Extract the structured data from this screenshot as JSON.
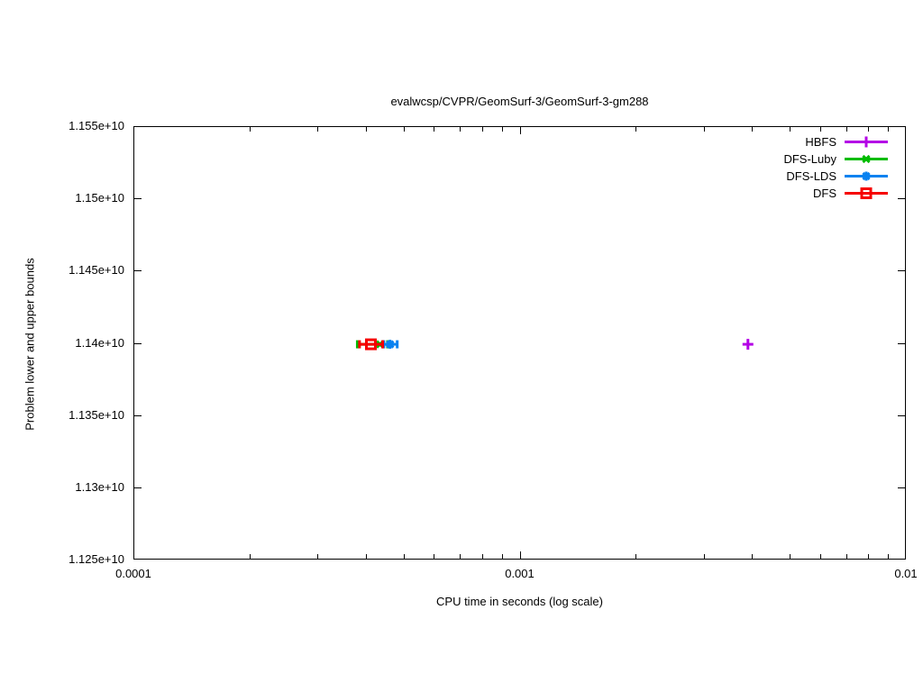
{
  "title": "evalwcsp/CVPR/GeomSurf-3/GeomSurf-3-gm288",
  "axes": {
    "x_label": "CPU time in seconds (log scale)",
    "y_label": "Problem lower and upper bounds",
    "x_ticks": [
      {
        "value": 0.0001,
        "label": "0.0001"
      },
      {
        "value": 0.001,
        "label": "0.001"
      },
      {
        "value": 0.01,
        "label": "0.01"
      }
    ],
    "y_ticks": [
      {
        "value": 11250000000,
        "label": "1.125e+10"
      },
      {
        "value": 11300000000,
        "label": "1.13e+10"
      },
      {
        "value": 11350000000,
        "label": "1.135e+10"
      },
      {
        "value": 11400000000,
        "label": "1.14e+10"
      },
      {
        "value": 11450000000,
        "label": "1.145e+10"
      },
      {
        "value": 11500000000,
        "label": "1.15e+10"
      },
      {
        "value": 11550000000,
        "label": "1.155e+10"
      }
    ]
  },
  "chart_data": {
    "type": "scatter",
    "title": "evalwcsp/CVPR/GeomSurf-3/GeomSurf-3-gm288",
    "xlabel": "CPU time in seconds (log scale)",
    "ylabel": "Problem lower and upper bounds",
    "x_scale": "log",
    "xlim": [
      0.0001,
      0.01
    ],
    "ylim": [
      11250000000,
      11550000000
    ],
    "grid": false,
    "legend_position": "top-right-inside",
    "series": [
      {
        "name": "HBFS",
        "color": "#b400e6",
        "marker": "plus",
        "points": [
          {
            "x": 0.0039,
            "y": 11399000000
          }
        ]
      },
      {
        "name": "DFS-Luby",
        "color": "#00bc00",
        "marker": "cross",
        "points": [
          {
            "x": 0.000435,
            "y": 11399000000,
            "x_from": 0.00038,
            "x_to": 0.000455
          }
        ]
      },
      {
        "name": "DFS-LDS",
        "color": "#0a82f0",
        "marker": "asterisk",
        "points": [
          {
            "x": 0.000462,
            "y": 11399000000,
            "x_from": 0.000445,
            "x_to": 0.000482
          }
        ]
      },
      {
        "name": "DFS",
        "color": "#f60000",
        "marker": "square",
        "points": [
          {
            "x": 0.000412,
            "y": 11399000000,
            "x_from": 0.000385,
            "x_to": 0.000442
          }
        ]
      }
    ]
  }
}
